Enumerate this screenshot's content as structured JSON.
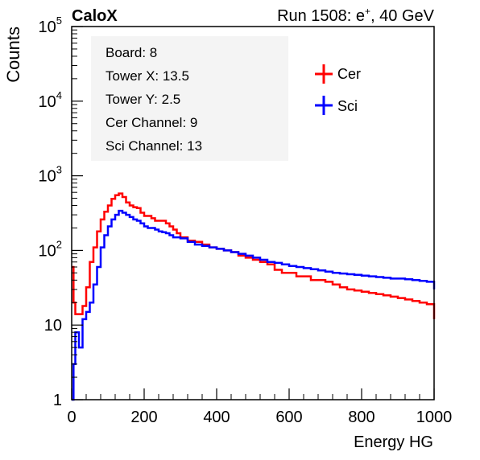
{
  "header": {
    "experiment": "CaloX",
    "run_prefix": "Run 1508: e",
    "run_sup": "+",
    "run_suffix": ", 40 GeV"
  },
  "info_box": [
    "Board: 8",
    "Tower X: 13.5",
    "Tower Y: 2.5",
    "Cer Channel: 9",
    "Sci Channel: 13"
  ],
  "legend": [
    {
      "label": "Cer",
      "color": "#ff0000"
    },
    {
      "label": "Sci",
      "color": "#0000ff"
    }
  ],
  "chart_data": {
    "type": "line",
    "xlabel": "Energy HG",
    "ylabel": "Counts",
    "x_scale": "linear",
    "y_scale": "log",
    "xlim": [
      0,
      1000
    ],
    "ylim": [
      1,
      100000
    ],
    "x_ticks": [
      "0",
      "200",
      "400",
      "600",
      "800",
      "1000"
    ],
    "y_ticks": [
      {
        "value": 1,
        "base": "1",
        "exp": ""
      },
      {
        "value": 10,
        "base": "10",
        "exp": ""
      },
      {
        "value": 100,
        "base": "10",
        "exp": "2"
      },
      {
        "value": 1000,
        "base": "10",
        "exp": "3"
      },
      {
        "value": 10000,
        "base": "10",
        "exp": "4"
      },
      {
        "value": 100000,
        "base": "10",
        "exp": "5"
      }
    ],
    "series": [
      {
        "name": "Cer",
        "color": "#ff0000",
        "x": [
          0,
          5,
          10,
          20,
          30,
          40,
          50,
          60,
          70,
          80,
          90,
          100,
          110,
          120,
          130,
          140,
          150,
          160,
          170,
          180,
          190,
          200,
          210,
          220,
          230,
          240,
          250,
          260,
          270,
          280,
          290,
          300,
          320,
          340,
          360,
          380,
          400,
          420,
          440,
          460,
          480,
          500,
          520,
          540,
          560,
          580,
          600,
          620,
          640,
          660,
          680,
          700,
          720,
          740,
          760,
          780,
          800,
          820,
          840,
          860,
          880,
          900,
          920,
          940,
          960,
          980,
          1000
        ],
        "y": [
          60,
          20,
          14,
          14,
          18,
          32,
          70,
          110,
          180,
          260,
          330,
          400,
          490,
          550,
          580,
          520,
          440,
          400,
          380,
          370,
          320,
          290,
          290,
          270,
          250,
          250,
          250,
          230,
          210,
          190,
          170,
          150,
          135,
          130,
          120,
          110,
          105,
          100,
          95,
          85,
          80,
          75,
          70,
          65,
          55,
          50,
          50,
          45,
          45,
          40,
          40,
          38,
          35,
          32,
          30,
          29,
          28,
          27,
          26,
          25,
          24,
          23,
          22,
          21,
          20,
          19,
          12
        ]
      },
      {
        "name": "Sci",
        "color": "#0000ff",
        "x": [
          0,
          5,
          10,
          20,
          30,
          40,
          50,
          60,
          70,
          80,
          90,
          100,
          110,
          120,
          130,
          140,
          150,
          160,
          170,
          180,
          190,
          200,
          210,
          220,
          230,
          240,
          250,
          260,
          270,
          280,
          290,
          300,
          320,
          340,
          360,
          380,
          400,
          420,
          440,
          460,
          480,
          500,
          520,
          540,
          560,
          580,
          600,
          620,
          640,
          660,
          680,
          700,
          720,
          740,
          760,
          780,
          800,
          820,
          840,
          860,
          880,
          900,
          920,
          940,
          960,
          980,
          1000
        ],
        "y": [
          1,
          3,
          8,
          5,
          12,
          15,
          20,
          35,
          60,
          110,
          160,
          210,
          260,
          300,
          340,
          320,
          300,
          280,
          260,
          250,
          230,
          210,
          200,
          200,
          190,
          180,
          175,
          170,
          160,
          150,
          150,
          145,
          130,
          120,
          115,
          110,
          105,
          100,
          95,
          90,
          85,
          80,
          75,
          70,
          68,
          65,
          62,
          60,
          58,
          56,
          54,
          52,
          50,
          49,
          48,
          47,
          46,
          45,
          44,
          43,
          42,
          42,
          41,
          40,
          39,
          38,
          30
        ]
      }
    ]
  }
}
